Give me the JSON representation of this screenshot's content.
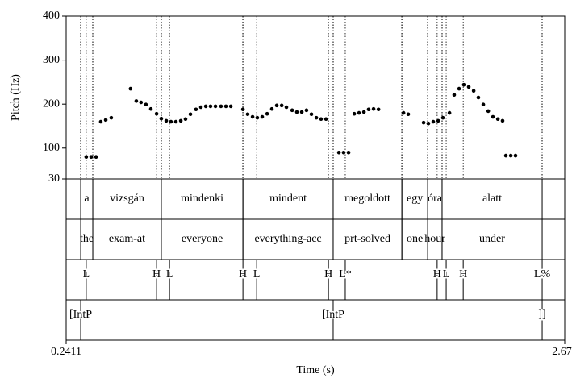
{
  "chart_data": {
    "type": "scatter",
    "ylabel": "Pitch (Hz)",
    "xlabel": "Time (s)",
    "xlim": [
      0.2411,
      2.672
    ],
    "xticks": [
      0.2411,
      2.672
    ],
    "ylim": [
      30,
      400
    ],
    "yticks": [
      30,
      100,
      200,
      300,
      400
    ],
    "color": "#000000",
    "x": [
      0.339,
      0.363,
      0.387,
      0.41,
      0.434,
      0.461,
      0.555,
      0.583,
      0.606,
      0.63,
      0.654,
      0.682,
      0.705,
      0.729,
      0.752,
      0.776,
      0.8,
      0.823,
      0.847,
      0.874,
      0.898,
      0.922,
      0.945,
      0.969,
      0.996,
      1.02,
      1.044,
      1.103,
      1.126,
      1.15,
      1.173,
      1.197,
      1.221,
      1.244,
      1.268,
      1.292,
      1.315,
      1.343,
      1.366,
      1.39,
      1.413,
      1.437,
      1.461,
      1.484,
      1.508,
      1.571,
      1.594,
      1.618,
      1.646,
      1.669,
      1.693,
      1.716,
      1.74,
      1.764,
      1.886,
      1.909,
      1.984,
      2.007,
      2.031,
      2.055,
      2.078,
      2.11,
      2.133,
      2.157,
      2.18,
      2.204,
      2.228,
      2.251,
      2.275,
      2.299,
      2.322,
      2.346,
      2.369,
      2.385,
      2.409,
      2.432
    ],
    "values": [
      80,
      80,
      80,
      160,
      164,
      169,
      235,
      207,
      204,
      199,
      189,
      178,
      167,
      162,
      160,
      160,
      162,
      166,
      177,
      188,
      193,
      195,
      195,
      195,
      195,
      195,
      195,
      188,
      177,
      171,
      169,
      171,
      178,
      189,
      197,
      197,
      193,
      186,
      182,
      182,
      186,
      177,
      169,
      166,
      166,
      90,
      90,
      90,
      178,
      180,
      182,
      188,
      189,
      188,
      180,
      177,
      158,
      156,
      160,
      162,
      169,
      180,
      221,
      235,
      244,
      239,
      230,
      215,
      199,
      184,
      171,
      166,
      162,
      83,
      83,
      83
    ],
    "tiers": [
      {
        "intervals": [
          {
            "label": "a",
            "start": 0.312,
            "end": 0.371
          },
          {
            "label": "vizsgán",
            "start": 0.371,
            "end": 0.705
          },
          {
            "label": "mindenki",
            "start": 0.705,
            "end": 1.103
          },
          {
            "label": "mindent",
            "start": 1.103,
            "end": 1.543
          },
          {
            "label": "megoldott",
            "start": 1.543,
            "end": 1.878
          },
          {
            "label": "egy",
            "start": 1.878,
            "end": 2.004
          },
          {
            "label": "óra",
            "start": 2.004,
            "end": 2.074
          },
          {
            "label": "alatt",
            "start": 2.074,
            "end": 2.562
          }
        ]
      },
      {
        "intervals": [
          {
            "label": "the",
            "start": 0.312,
            "end": 0.371
          },
          {
            "label": "exam-at",
            "start": 0.371,
            "end": 0.705
          },
          {
            "label": "everyone",
            "start": 0.705,
            "end": 1.103
          },
          {
            "label": "everything-acc",
            "start": 1.103,
            "end": 1.543
          },
          {
            "label": "prt-solved",
            "start": 1.543,
            "end": 1.878
          },
          {
            "label": "one",
            "start": 1.878,
            "end": 2.004
          },
          {
            "label": "hour",
            "start": 2.004,
            "end": 2.074
          },
          {
            "label": "under",
            "start": 2.074,
            "end": 2.562
          }
        ]
      },
      {
        "points": [
          {
            "label": "L",
            "time": 0.339
          },
          {
            "label": "H",
            "time": 0.682
          },
          {
            "label": "L",
            "time": 0.745
          },
          {
            "label": "H",
            "time": 1.103
          },
          {
            "label": "L",
            "time": 1.17
          },
          {
            "label": "H",
            "time": 1.52
          },
          {
            "label": "L*",
            "time": 1.602
          },
          {
            "label": "H",
            "time": 2.05
          },
          {
            "label": "L",
            "time": 2.094
          },
          {
            "label": "H",
            "time": 2.177
          },
          {
            "label": "L%",
            "time": 2.562
          }
        ]
      },
      {
        "points": [
          {
            "label": "[IntP",
            "time": 0.312
          },
          {
            "label": "[IntP",
            "time": 1.543
          },
          {
            "label": "]]",
            "time": 2.562
          }
        ]
      }
    ]
  }
}
